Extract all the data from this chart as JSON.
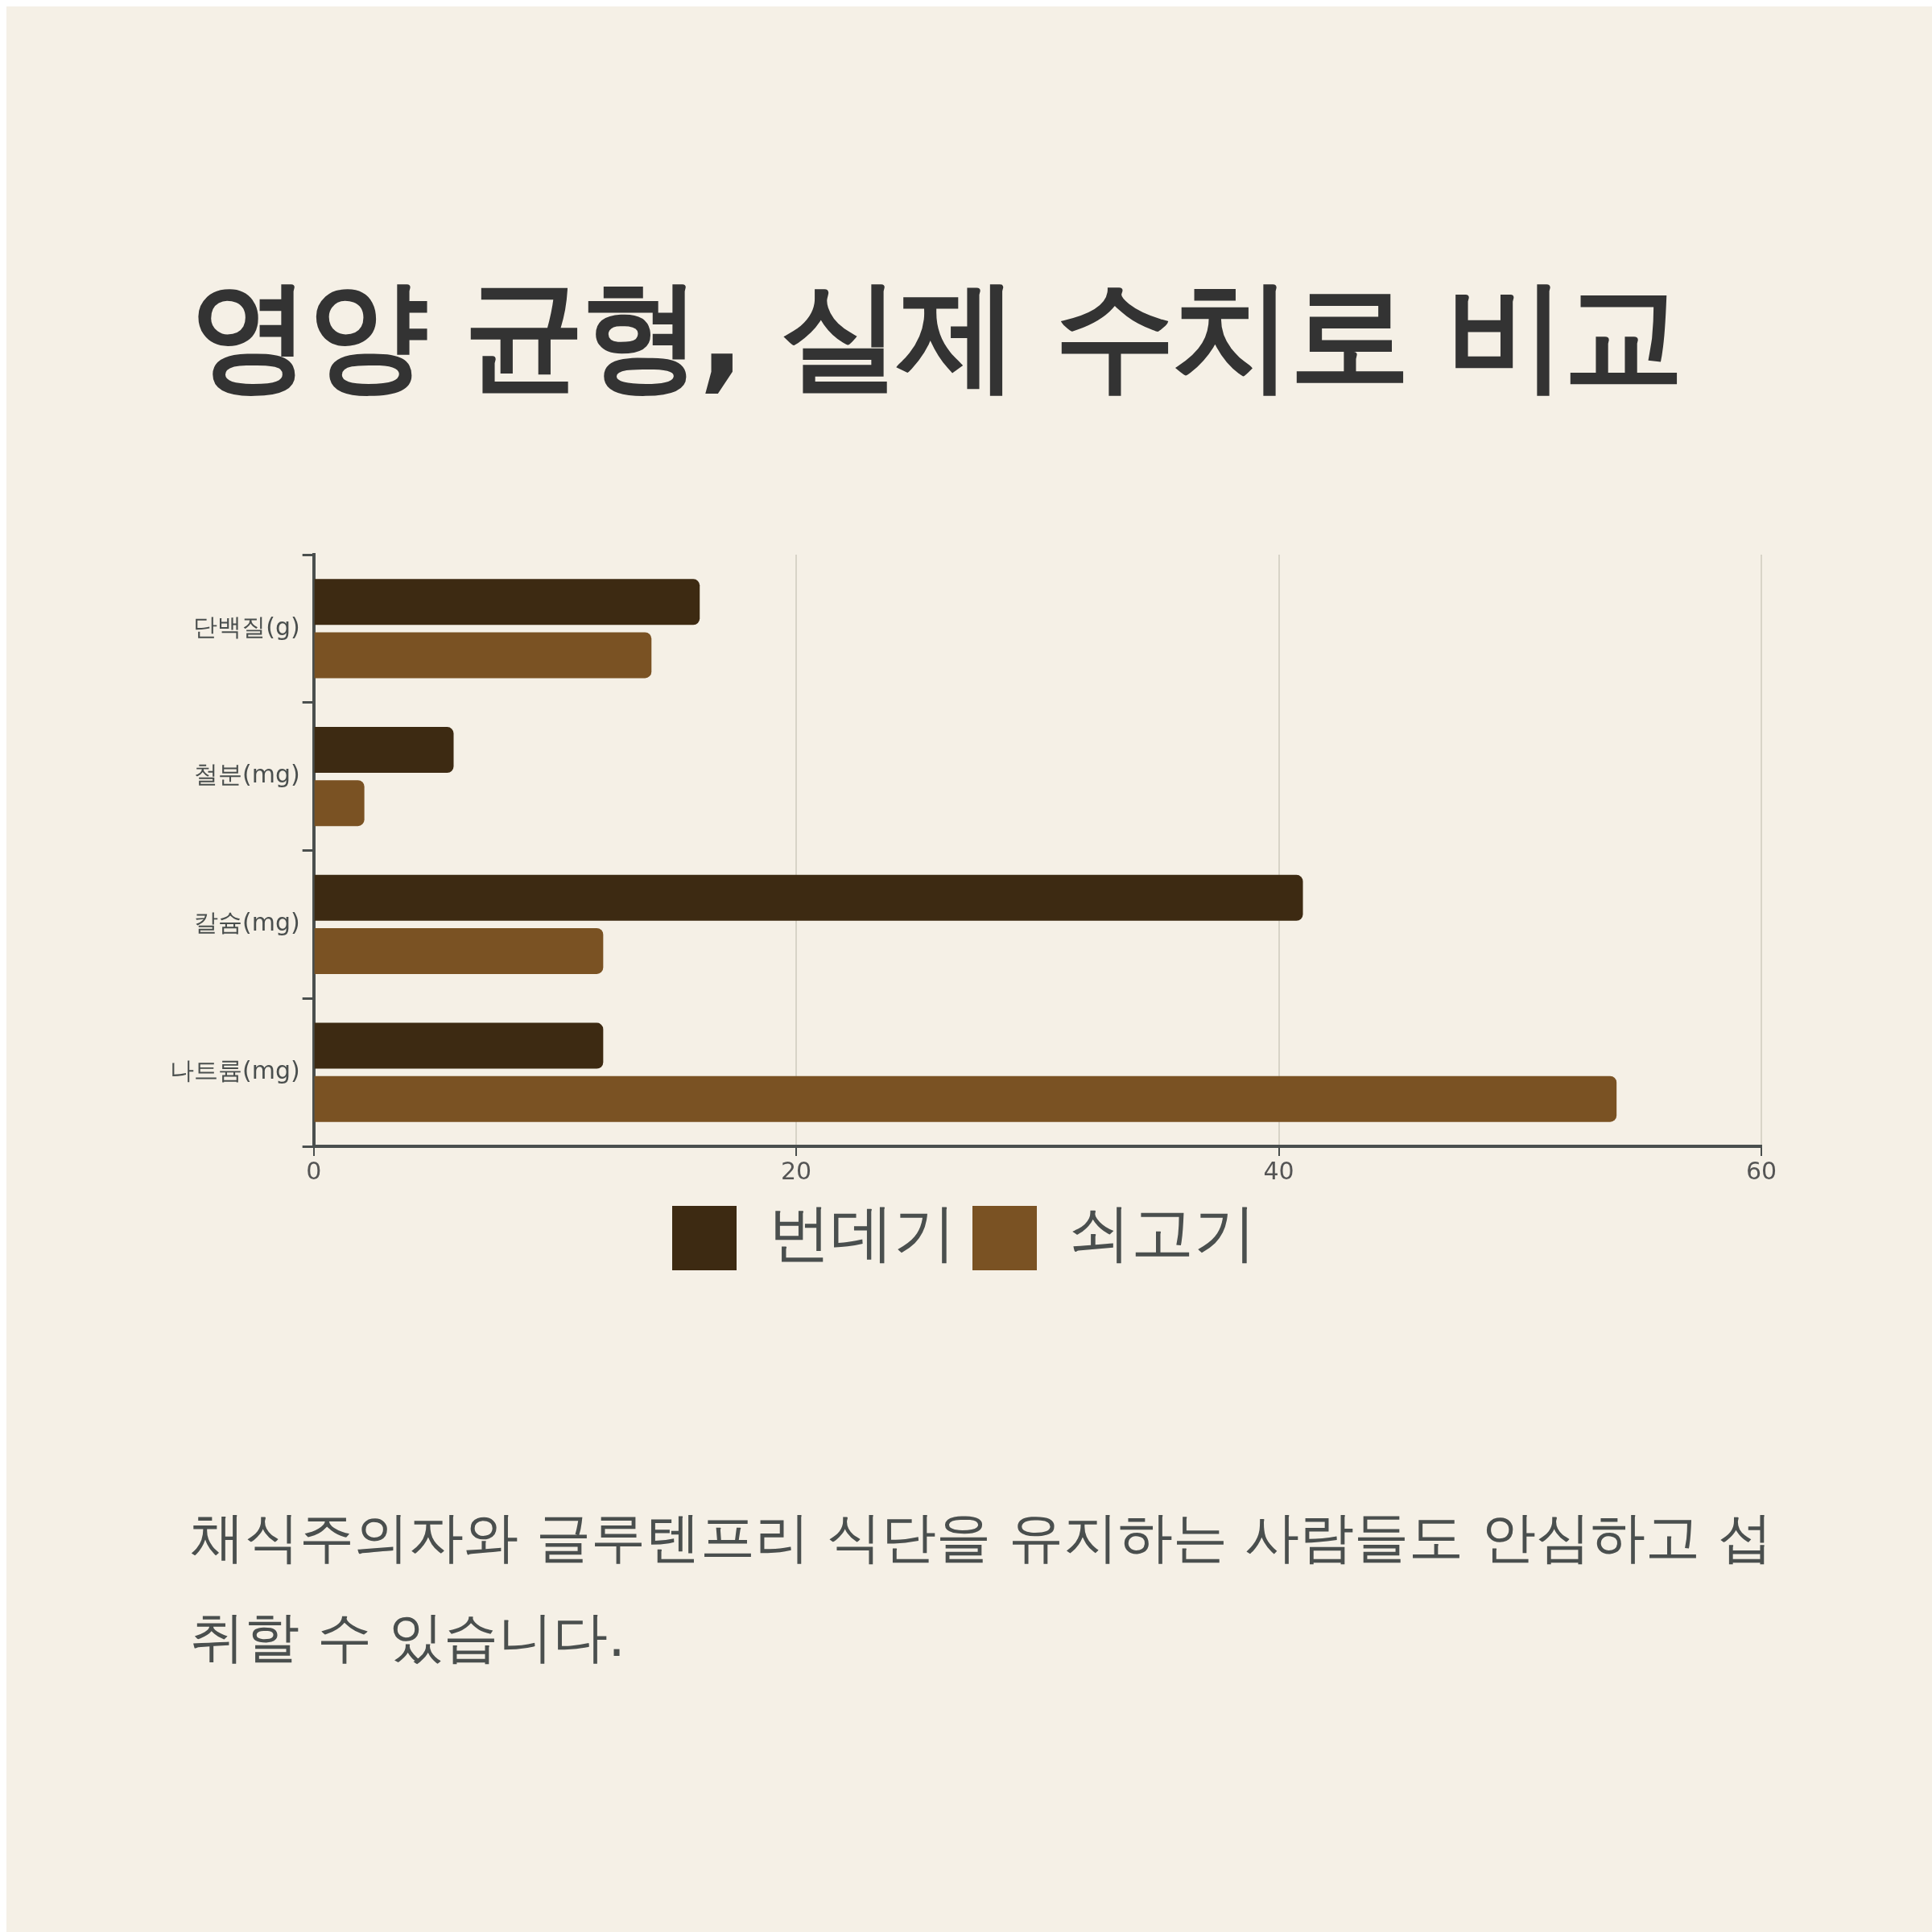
{
  "chart_data": {
    "type": "bar",
    "orientation": "horizontal",
    "title": "영양 균형, 실제 수치로 비교",
    "categories": [
      "단백질(g)",
      "철분(mg)",
      "칼슘(mg)",
      "나트륨(mg)"
    ],
    "series": [
      {
        "name": "번데기",
        "color": "#3d2a12",
        "values": [
          16,
          5.8,
          41,
          12
        ]
      },
      {
        "name": "쇠고기",
        "color": "#7a5223",
        "values": [
          14,
          2.1,
          12,
          54
        ]
      }
    ],
    "xlim": [
      0,
      60
    ],
    "xticks": [
      0,
      20,
      40,
      60
    ],
    "grid": "x",
    "legend": "bottom",
    "annotations": [
      "채식주의자와 글루텐프리 식단을 유지하는 사람들도 안심하고 섭취할 수 있습니다."
    ]
  }
}
